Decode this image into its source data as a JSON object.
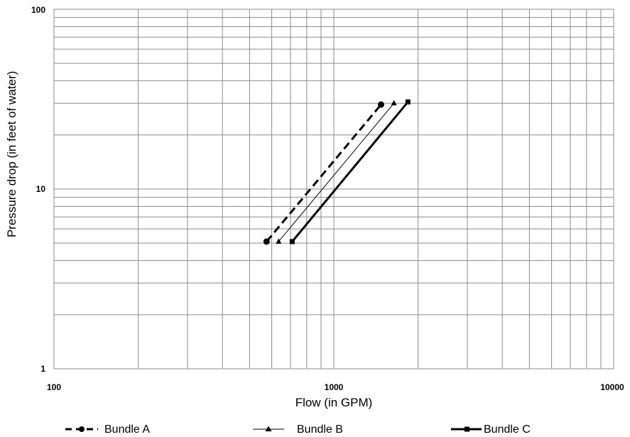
{
  "chart_data": {
    "type": "line",
    "xlabel": "Flow (in GPM)",
    "ylabel": "Pressure drop (in feet of water)",
    "x_scale": "log",
    "y_scale": "log",
    "xlim": [
      100,
      10000
    ],
    "ylim": [
      1,
      100
    ],
    "x_tick_labels": [
      "100",
      "1000",
      "10000"
    ],
    "y_tick_labels": [
      "1",
      "10",
      "100"
    ],
    "grid": true,
    "legend_position": "bottom",
    "series": [
      {
        "name": "Bundle A",
        "line_style": "dashed",
        "marker": "circle",
        "x": [
          575,
          1475
        ],
        "y": [
          5.1,
          29.5
        ]
      },
      {
        "name": "Bundle B",
        "line_style": "thin",
        "marker": "triangle",
        "x": [
          635,
          1640
        ],
        "y": [
          5.1,
          30
        ]
      },
      {
        "name": "Bundle C",
        "line_style": "solid",
        "marker": "square",
        "x": [
          710,
          1840
        ],
        "y": [
          5.1,
          30.5
        ]
      }
    ]
  }
}
